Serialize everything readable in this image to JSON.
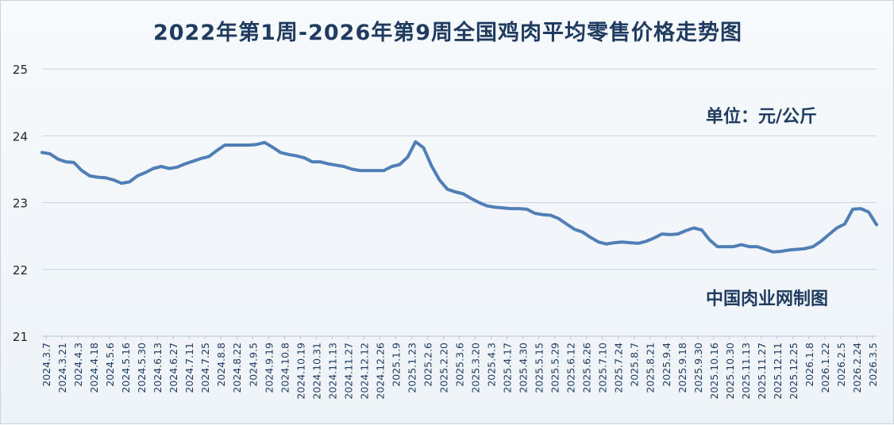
{
  "chart_data": {
    "type": "line",
    "title": "2022年第1周-2026年第9周全国鸡肉平均零售价格走势图",
    "unit_label": "单位：元/公斤",
    "source_label": "中国肉业网制图",
    "ylim": [
      21,
      25
    ],
    "yticks": [
      "21",
      "22",
      "23",
      "24",
      "25"
    ],
    "grid": "horizontal",
    "colors": {
      "line": "#4f7fb6",
      "grid": "#c9d4e0",
      "text": "#1f3b5f",
      "tick": "#222222"
    },
    "x_tick_labels": [
      "2024.3.7",
      "2024.3.21",
      "2024.4.3",
      "2024.4.18",
      "2024.5.6",
      "2024.5.16",
      "2024.5.30",
      "2024.6.13",
      "2024.6.27",
      "2024.7.11",
      "2024.7.25",
      "2024.8.8",
      "2024.8.22",
      "2024.9.5",
      "2024.9.19",
      "2024.10.8",
      "2024.10.19",
      "2024.10.31",
      "2024.11.13",
      "2024.11.27",
      "2024.12.12",
      "2024.12.26",
      "2025.1.9",
      "2025.1.23",
      "2025.2.6",
      "2025.2.20",
      "2025.3.6",
      "2025.3.20",
      "2025.4.3",
      "2025.4.17",
      "2025.4.30",
      "2025.5.15",
      "2025.5.29",
      "2025.6.12",
      "2025.6.26",
      "2025.7.10",
      "2025.7.24",
      "2025.8.7",
      "2025.8.21",
      "2025.9.4",
      "2025.9.18",
      "2025.9.30",
      "2025.10.16",
      "2025.10.30",
      "2025.11.13",
      "2025.11.27",
      "2025.12.11",
      "2025.12.25",
      "2026.1.8",
      "2026.1.22",
      "2026.2.5",
      "2026.2.24",
      "2026.3.5"
    ],
    "series": [
      {
        "values": [
          23.75,
          23.73,
          23.65,
          23.61,
          23.6,
          23.48,
          23.4,
          23.38,
          23.37,
          23.34,
          23.29,
          23.31,
          23.4,
          23.45,
          23.51,
          23.54,
          23.51,
          23.53,
          23.58,
          23.62,
          23.66,
          23.69,
          23.78,
          23.86,
          23.86,
          23.86,
          23.86,
          23.87,
          23.9,
          23.83,
          23.75,
          23.72,
          23.7,
          23.67,
          23.61,
          23.61,
          23.58,
          23.56,
          23.54,
          23.5,
          23.48,
          23.48,
          23.48,
          23.48,
          23.54,
          23.57,
          23.68,
          23.91,
          23.82,
          23.55,
          23.34,
          23.2,
          23.16,
          23.13,
          23.06,
          23.0,
          22.95,
          22.93,
          22.92,
          22.91,
          22.91,
          22.9,
          22.84,
          22.82,
          22.81,
          22.76,
          22.68,
          22.6,
          22.56,
          22.48,
          22.41,
          22.38,
          22.4,
          22.41,
          22.4,
          22.39,
          22.42,
          22.47,
          22.53,
          22.52,
          22.53,
          22.58,
          22.62,
          22.59,
          22.44,
          22.34,
          22.34,
          22.34,
          22.37,
          22.34,
          22.34,
          22.3,
          22.26,
          22.27,
          22.29,
          22.3,
          22.31,
          22.34,
          22.42,
          22.52,
          22.62,
          22.68,
          22.9,
          22.91,
          22.86,
          22.67
        ]
      }
    ]
  }
}
